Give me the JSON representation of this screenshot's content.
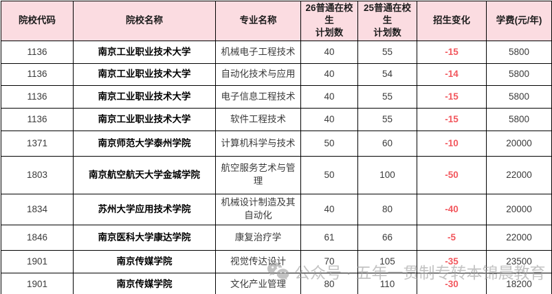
{
  "colors": {
    "header_bg": "#fbdce1",
    "border": "#000000",
    "change_red": "#f2565c",
    "name_text": "#000000",
    "body_text": "#3a3a3a",
    "watermark_gray": "#9e9e9e"
  },
  "table": {
    "columns": [
      {
        "key": "code",
        "label": "院校代码"
      },
      {
        "key": "name",
        "label": "院校名称"
      },
      {
        "key": "major",
        "label": "专业名称"
      },
      {
        "key": "plan26",
        "label": "26普通在校生\n计划数"
      },
      {
        "key": "plan25",
        "label": "25普通在校生\n计划数"
      },
      {
        "key": "change",
        "label": "招生变化"
      },
      {
        "key": "fee",
        "label": "学费(元/年)"
      }
    ],
    "rows": [
      {
        "code": "1136",
        "name": "南京工业职业技术大学",
        "major": "机械电子工程技术",
        "plan26": "40",
        "plan25": "55",
        "change": "-15",
        "fee": "5800"
      },
      {
        "code": "1136",
        "name": "南京工业职业技术大学",
        "major": "自动化技术与应用",
        "plan26": "40",
        "plan25": "54",
        "change": "-14",
        "fee": "5800"
      },
      {
        "code": "1136",
        "name": "南京工业职业技术大学",
        "major": "电子信息工程技术",
        "plan26": "40",
        "plan25": "55",
        "change": "-15",
        "fee": "5800"
      },
      {
        "code": "1136",
        "name": "南京工业职业技术大学",
        "major": "软件工程技术",
        "plan26": "40",
        "plan25": "55",
        "change": "-15",
        "fee": "5800"
      },
      {
        "code": "1371",
        "name": "南京师范大学泰州学院",
        "major": "计算机科学与技术",
        "plan26": "50",
        "plan25": "60",
        "change": "-10",
        "fee": "20000"
      },
      {
        "code": "1803",
        "name": "南京航空航天大学金城学院",
        "major": "航空服务艺术与管理",
        "plan26": "50",
        "plan25": "100",
        "change": "-50",
        "fee": "22000"
      },
      {
        "code": "1834",
        "name": "苏州大学应用技术学院",
        "major": "机械设计制造及其自动化",
        "plan26": "40",
        "plan25": "80",
        "change": "-40",
        "fee": "20000"
      },
      {
        "code": "1846",
        "name": "南京医科大学康达学院",
        "major": "康复治疗学",
        "plan26": "61",
        "plan25": "66",
        "change": "-5",
        "fee": "22000"
      },
      {
        "code": "1901",
        "name": "南京传媒学院",
        "major": "视觉传达设计",
        "plan26": "70",
        "plan25": "105",
        "change": "-35",
        "fee": "23500"
      },
      {
        "code": "1901",
        "name": "南京传媒学院",
        "major": "文化产业管理",
        "plan26": "80",
        "plan25": "110",
        "change": "-30",
        "fee": "18200"
      }
    ]
  },
  "watermark": {
    "icon": "wechat-icon",
    "text": "公众号 · 五年一贯制专转本锦晨教育"
  }
}
